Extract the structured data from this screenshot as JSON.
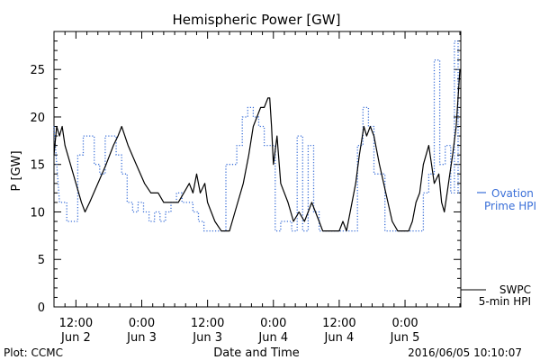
{
  "chart_data": {
    "type": "line",
    "title": "Hemispheric Power [GW]",
    "xlabel": "Date and Time",
    "ylabel": "P [GW]",
    "ylim": [
      0,
      29
    ],
    "y_ticks": [
      "0",
      "5",
      "10",
      "15",
      "20",
      "25"
    ],
    "y_tick_values": [
      0,
      5,
      10,
      15,
      20,
      25
    ],
    "x_range": [
      "2016-06-02T08:00",
      "2016-06-05T10:10"
    ],
    "x_ticks": [
      {
        "t": "2016-06-02T12:00",
        "time": "12:00",
        "date": "Jun 2"
      },
      {
        "t": "2016-06-03T00:00",
        "time": "0:00",
        "date": "Jun 3"
      },
      {
        "t": "2016-06-03T12:00",
        "time": "12:00",
        "date": "Jun 3"
      },
      {
        "t": "2016-06-04T00:00",
        "time": "0:00",
        "date": "Jun 4"
      },
      {
        "t": "2016-06-04T12:00",
        "time": "12:00",
        "date": "Jun 4"
      },
      {
        "t": "2016-06-05T00:00",
        "time": "0:00",
        "date": "Jun 5"
      }
    ],
    "grid": false,
    "series": [
      {
        "name": "SWPC 5-min HPI",
        "label_line1": "SWPC",
        "label_line2": "5-min HPI",
        "color": "#000000",
        "style": "solid",
        "points": [
          [
            "2016-06-02T08:00",
            16
          ],
          [
            "2016-06-02T08:30",
            19
          ],
          [
            "2016-06-02T09:00",
            18
          ],
          [
            "2016-06-02T09:30",
            19
          ],
          [
            "2016-06-02T10:00",
            17
          ],
          [
            "2016-06-02T11:00",
            15
          ],
          [
            "2016-06-02T12:00",
            13
          ],
          [
            "2016-06-02T13:00",
            11
          ],
          [
            "2016-06-02T13:40",
            10
          ],
          [
            "2016-06-02T14:30",
            11
          ],
          [
            "2016-06-02T16:00",
            13
          ],
          [
            "2016-06-02T17:30",
            15
          ],
          [
            "2016-06-02T18:50",
            17
          ],
          [
            "2016-06-02T19:40",
            18
          ],
          [
            "2016-06-02T20:20",
            19
          ],
          [
            "2016-06-02T21:30",
            17
          ],
          [
            "2016-06-02T23:00",
            15
          ],
          [
            "2016-06-03T00:30",
            13
          ],
          [
            "2016-06-03T01:40",
            12
          ],
          [
            "2016-06-03T03:00",
            12
          ],
          [
            "2016-06-03T04:00",
            11
          ],
          [
            "2016-06-03T06:40",
            11
          ],
          [
            "2016-06-03T07:40",
            12
          ],
          [
            "2016-06-03T08:40",
            13
          ],
          [
            "2016-06-03T09:20",
            12
          ],
          [
            "2016-06-03T10:00",
            14
          ],
          [
            "2016-06-03T10:40",
            12
          ],
          [
            "2016-06-03T11:30",
            13
          ],
          [
            "2016-06-03T12:00",
            11
          ],
          [
            "2016-06-03T12:40",
            10
          ],
          [
            "2016-06-03T13:20",
            9
          ],
          [
            "2016-06-03T14:30",
            8
          ],
          [
            "2016-06-03T16:00",
            8
          ],
          [
            "2016-06-03T17:00",
            10
          ],
          [
            "2016-06-03T18:30",
            13
          ],
          [
            "2016-06-03T19:30",
            16
          ],
          [
            "2016-06-03T20:20",
            19
          ],
          [
            "2016-06-03T21:00",
            20
          ],
          [
            "2016-06-03T21:40",
            21
          ],
          [
            "2016-06-03T22:20",
            21
          ],
          [
            "2016-06-03T23:00",
            22
          ],
          [
            "2016-06-03T23:20",
            22
          ],
          [
            "2016-06-03T23:40",
            19
          ],
          [
            "2016-06-04T00:00",
            15
          ],
          [
            "2016-06-04T00:40",
            18
          ],
          [
            "2016-06-04T01:20",
            13
          ],
          [
            "2016-06-04T02:40",
            11
          ],
          [
            "2016-06-04T03:40",
            9
          ],
          [
            "2016-06-04T04:40",
            10
          ],
          [
            "2016-06-04T05:40",
            9
          ],
          [
            "2016-06-04T06:20",
            10
          ],
          [
            "2016-06-04T07:00",
            11
          ],
          [
            "2016-06-04T07:40",
            10
          ],
          [
            "2016-06-04T08:20",
            9
          ],
          [
            "2016-06-04T09:00",
            8
          ],
          [
            "2016-06-04T12:00",
            8
          ],
          [
            "2016-06-04T12:40",
            9
          ],
          [
            "2016-06-04T13:20",
            8
          ],
          [
            "2016-06-04T14:00",
            10
          ],
          [
            "2016-06-04T15:00",
            13
          ],
          [
            "2016-06-04T15:40",
            16
          ],
          [
            "2016-06-04T16:30",
            19
          ],
          [
            "2016-06-04T17:00",
            18
          ],
          [
            "2016-06-04T17:40",
            19
          ],
          [
            "2016-06-04T18:20",
            18
          ],
          [
            "2016-06-04T19:20",
            15
          ],
          [
            "2016-06-04T20:30",
            12
          ],
          [
            "2016-06-04T21:40",
            9
          ],
          [
            "2016-06-04T22:40",
            8
          ],
          [
            "2016-06-05T00:40",
            8
          ],
          [
            "2016-06-05T01:20",
            9
          ],
          [
            "2016-06-05T02:00",
            11
          ],
          [
            "2016-06-05T02:40",
            12
          ],
          [
            "2016-06-05T03:20",
            15
          ],
          [
            "2016-06-05T03:50",
            16
          ],
          [
            "2016-06-05T04:20",
            17
          ],
          [
            "2016-06-05T04:50",
            15
          ],
          [
            "2016-06-05T05:20",
            13
          ],
          [
            "2016-06-05T06:10",
            14
          ],
          [
            "2016-06-05T06:40",
            11
          ],
          [
            "2016-06-05T07:10",
            10
          ],
          [
            "2016-06-05T07:40",
            12
          ],
          [
            "2016-06-05T08:10",
            14
          ],
          [
            "2016-06-05T08:40",
            16
          ],
          [
            "2016-06-05T09:20",
            19
          ],
          [
            "2016-06-05T10:00",
            25
          ]
        ]
      },
      {
        "name": "Ovation Prime HPI",
        "label_line1": "Ovation",
        "label_line2": "Prime HPI",
        "color": "#3a6fd8",
        "style": "dotted",
        "points": [
          [
            "2016-06-02T08:00",
            19
          ],
          [
            "2016-06-02T09:00",
            11
          ],
          [
            "2016-06-02T10:20",
            11
          ],
          [
            "2016-06-02T10:20",
            9
          ],
          [
            "2016-06-02T12:20",
            9
          ],
          [
            "2016-06-02T12:20",
            16
          ],
          [
            "2016-06-02T13:20",
            16
          ],
          [
            "2016-06-02T13:20",
            18
          ],
          [
            "2016-06-02T15:20",
            18
          ],
          [
            "2016-06-02T15:20",
            15
          ],
          [
            "2016-06-02T16:20",
            15
          ],
          [
            "2016-06-02T16:20",
            14
          ],
          [
            "2016-06-02T17:20",
            14
          ],
          [
            "2016-06-02T17:20",
            18
          ],
          [
            "2016-06-02T19:20",
            18
          ],
          [
            "2016-06-02T19:20",
            16
          ],
          [
            "2016-06-02T20:20",
            16
          ],
          [
            "2016-06-02T20:20",
            14
          ],
          [
            "2016-06-02T21:20",
            14
          ],
          [
            "2016-06-02T21:20",
            11
          ],
          [
            "2016-06-02T22:20",
            11
          ],
          [
            "2016-06-02T22:20",
            10
          ],
          [
            "2016-06-02T23:20",
            10
          ],
          [
            "2016-06-02T23:20",
            11
          ],
          [
            "2016-06-03T00:20",
            11
          ],
          [
            "2016-06-03T00:20",
            10
          ],
          [
            "2016-06-03T01:20",
            10
          ],
          [
            "2016-06-03T01:20",
            9
          ],
          [
            "2016-06-03T02:20",
            9
          ],
          [
            "2016-06-03T02:20",
            10
          ],
          [
            "2016-06-03T03:20",
            10
          ],
          [
            "2016-06-03T03:20",
            9
          ],
          [
            "2016-06-03T04:20",
            9
          ],
          [
            "2016-06-03T04:20",
            10
          ],
          [
            "2016-06-03T05:20",
            10
          ],
          [
            "2016-06-03T05:20",
            11
          ],
          [
            "2016-06-03T06:20",
            11
          ],
          [
            "2016-06-03T06:20",
            12
          ],
          [
            "2016-06-03T07:20",
            12
          ],
          [
            "2016-06-03T07:20",
            11
          ],
          [
            "2016-06-03T09:20",
            11
          ],
          [
            "2016-06-03T09:20",
            10
          ],
          [
            "2016-06-03T10:20",
            10
          ],
          [
            "2016-06-03T10:20",
            9
          ],
          [
            "2016-06-03T11:20",
            9
          ],
          [
            "2016-06-03T11:20",
            8
          ],
          [
            "2016-06-03T15:20",
            8
          ],
          [
            "2016-06-03T15:20",
            15
          ],
          [
            "2016-06-03T17:20",
            15
          ],
          [
            "2016-06-03T17:20",
            17
          ],
          [
            "2016-06-03T18:20",
            17
          ],
          [
            "2016-06-03T18:20",
            20
          ],
          [
            "2016-06-03T19:20",
            20
          ],
          [
            "2016-06-03T19:20",
            21
          ],
          [
            "2016-06-03T20:20",
            21
          ],
          [
            "2016-06-03T20:20",
            20
          ],
          [
            "2016-06-03T21:20",
            20
          ],
          [
            "2016-06-03T21:20",
            19
          ],
          [
            "2016-06-03T22:20",
            19
          ],
          [
            "2016-06-03T22:20",
            17
          ],
          [
            "2016-06-04T00:20",
            17
          ],
          [
            "2016-06-04T00:20",
            8
          ],
          [
            "2016-06-04T01:20",
            8
          ],
          [
            "2016-06-04T01:20",
            9
          ],
          [
            "2016-06-04T03:20",
            9
          ],
          [
            "2016-06-04T03:20",
            8
          ],
          [
            "2016-06-04T04:20",
            8
          ],
          [
            "2016-06-04T04:20",
            18
          ],
          [
            "2016-06-04T05:20",
            18
          ],
          [
            "2016-06-04T05:20",
            8
          ],
          [
            "2016-06-04T06:20",
            8
          ],
          [
            "2016-06-04T06:20",
            17
          ],
          [
            "2016-06-04T07:20",
            17
          ],
          [
            "2016-06-04T07:20",
            10
          ],
          [
            "2016-06-04T08:20",
            10
          ],
          [
            "2016-06-04T08:20",
            8
          ],
          [
            "2016-06-04T15:20",
            8
          ],
          [
            "2016-06-04T15:20",
            17
          ],
          [
            "2016-06-04T16:20",
            17
          ],
          [
            "2016-06-04T16:20",
            21
          ],
          [
            "2016-06-04T17:20",
            21
          ],
          [
            "2016-06-04T17:20",
            19
          ],
          [
            "2016-06-04T18:20",
            19
          ],
          [
            "2016-06-04T18:20",
            14
          ],
          [
            "2016-06-04T20:20",
            14
          ],
          [
            "2016-06-04T20:20",
            8
          ],
          [
            "2016-06-05T03:20",
            8
          ],
          [
            "2016-06-05T03:20",
            12
          ],
          [
            "2016-06-05T04:20",
            12
          ],
          [
            "2016-06-05T04:20",
            14
          ],
          [
            "2016-06-05T05:20",
            14
          ],
          [
            "2016-06-05T05:20",
            26
          ],
          [
            "2016-06-05T06:20",
            26
          ],
          [
            "2016-06-05T06:20",
            15
          ],
          [
            "2016-06-05T07:20",
            15
          ],
          [
            "2016-06-05T07:20",
            17
          ],
          [
            "2016-06-05T08:20",
            17
          ],
          [
            "2016-06-05T08:20",
            12
          ],
          [
            "2016-06-05T09:00",
            12
          ],
          [
            "2016-06-05T09:00",
            28
          ],
          [
            "2016-06-05T09:40",
            28
          ],
          [
            "2016-06-05T09:40",
            12
          ],
          [
            "2016-06-05T10:10",
            12
          ]
        ]
      }
    ]
  },
  "footer": {
    "plot_credit": "Plot: CCMC",
    "timestamp": "2016/06/05 10:10:07"
  }
}
